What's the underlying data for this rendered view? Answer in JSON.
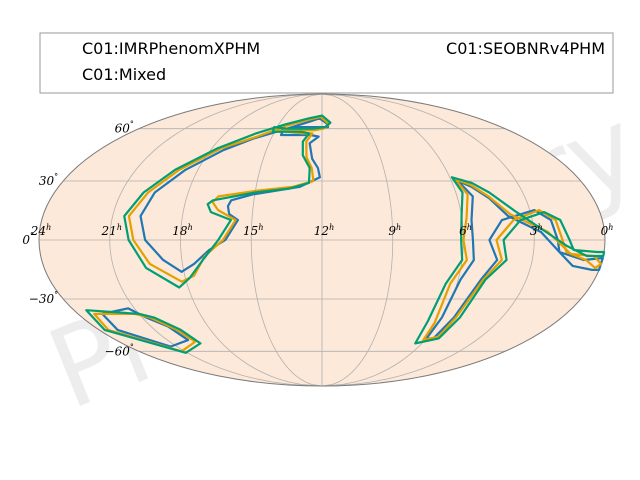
{
  "watermark": "Preliminary",
  "legend": {
    "entries": [
      {
        "label": "C01:IMRPhenomXPHM",
        "color": "#1f77b4"
      },
      {
        "label": "C01:SEOBNRv4PHM",
        "color": "#e69f00"
      },
      {
        "label": "C01:Mixed",
        "color": "#009e73"
      }
    ]
  },
  "chart_data": {
    "type": "skymap",
    "projection": "mollweide",
    "background_color": "#fde9d9",
    "grid": true,
    "ra_ticks": [
      {
        "hours": 24,
        "text": "24",
        "sup": "h"
      },
      {
        "hours": 21,
        "text": "21",
        "sup": "h"
      },
      {
        "hours": 18,
        "text": "18",
        "sup": "h"
      },
      {
        "hours": 15,
        "text": "15",
        "sup": "h"
      },
      {
        "hours": 12,
        "text": "12",
        "sup": "h"
      },
      {
        "hours": 9,
        "text": "9",
        "sup": "h"
      },
      {
        "hours": 6,
        "text": "6",
        "sup": "h"
      },
      {
        "hours": 3,
        "text": "3",
        "sup": "h"
      },
      {
        "hours": 0,
        "text": "0",
        "sup": "h"
      }
    ],
    "dec_ticks": [
      {
        "deg": 60,
        "text": "60",
        "sup": "°"
      },
      {
        "deg": 30,
        "text": "30",
        "sup": "°"
      },
      {
        "deg": 0,
        "text": "0",
        "sup": "°"
      },
      {
        "deg": -30,
        "text": "−30",
        "sup": "°"
      },
      {
        "deg": -60,
        "text": "−60",
        "sup": "°"
      }
    ],
    "series": [
      {
        "name": "C01:IMRPhenomXPHM",
        "color": "#1f77b4",
        "contours": [
          [
            [
              18.1,
              -16
            ],
            [
              18.8,
              -10
            ],
            [
              19.5,
              0
            ],
            [
              19.8,
              12
            ],
            [
              19.5,
              24
            ],
            [
              18.6,
              36
            ],
            [
              17.3,
              47
            ],
            [
              16.0,
              54
            ],
            [
              14.3,
              60
            ],
            [
              12.8,
              65
            ],
            [
              12.2,
              67
            ],
            [
              11.6,
              63
            ],
            [
              11.6,
              61
            ],
            [
              12.3,
              61
            ],
            [
              13.6,
              61
            ],
            [
              14.5,
              59
            ],
            [
              14.5,
              56
            ],
            [
              13.5,
              56
            ],
            [
              12.7,
              56
            ],
            [
              12.2,
              55
            ],
            [
              12.7,
              51
            ],
            [
              12.5,
              42
            ],
            [
              12.2,
              37
            ],
            [
              12.1,
              32
            ],
            [
              13.0,
              27
            ],
            [
              15.1,
              23
            ],
            [
              16.0,
              20
            ],
            [
              16.1,
              17
            ],
            [
              16.0,
              13
            ],
            [
              15.6,
              10
            ],
            [
              16.1,
              0
            ],
            [
              16.8,
              -5
            ],
            [
              17.5,
              -12
            ],
            [
              18.1,
              -16
            ]
          ],
          [
            [
              21.3,
              -35
            ],
            [
              22.8,
              -38
            ],
            [
              23.0,
              -47
            ],
            [
              21.4,
              -57
            ],
            [
              19.8,
              -53
            ],
            [
              20.1,
              -45
            ],
            [
              20.8,
              -40
            ],
            [
              21.3,
              -35
            ]
          ],
          [
            [
              5.7,
              30
            ],
            [
              5.3,
              22
            ],
            [
              5.6,
              10
            ],
            [
              5.6,
              0
            ],
            [
              5.5,
              -10
            ],
            [
              5.9,
              -20
            ],
            [
              6.0,
              -40
            ],
            [
              6.0,
              -52
            ],
            [
              5.6,
              -52
            ],
            [
              5.4,
              -40
            ],
            [
              5.0,
              -20
            ],
            [
              4.5,
              -10
            ],
            [
              4.9,
              0
            ],
            [
              4.3,
              10
            ],
            [
              2.8,
              15
            ],
            [
              2.2,
              10
            ],
            [
              2.0,
              0
            ],
            [
              1.9,
              -6
            ],
            [
              1.2,
              -13
            ],
            [
              0.3,
              -15
            ],
            [
              0,
              -15
            ],
            [
              0,
              -9
            ],
            [
              0.8,
              -10
            ],
            [
              1.9,
              -6
            ],
            [
              2.7,
              4
            ],
            [
              4.0,
              12
            ],
            [
              4.6,
              21
            ],
            [
              5.2,
              27
            ],
            [
              5.7,
              30
            ]
          ]
        ]
      },
      {
        "name": "C01:SEOBNRv4PHM",
        "color": "#e69f00",
        "contours": [
          [
            [
              18.2,
              -21
            ],
            [
              19.4,
              -12
            ],
            [
              20.0,
              0
            ],
            [
              20.3,
              12
            ],
            [
              19.8,
              24
            ],
            [
              18.9,
              36
            ],
            [
              17.5,
              48
            ],
            [
              15.9,
              55
            ],
            [
              14.4,
              62
            ],
            [
              13.0,
              66
            ],
            [
              12.1,
              68
            ],
            [
              11.5,
              63
            ],
            [
              11.9,
              60
            ],
            [
              12.5,
              59
            ],
            [
              14.1,
              59
            ],
            [
              14.9,
              61
            ],
            [
              14.9,
              59
            ],
            [
              14.1,
              58
            ],
            [
              13.2,
              57
            ],
            [
              12.6,
              57
            ],
            [
              12.9,
              52
            ],
            [
              12.8,
              43
            ],
            [
              12.5,
              37
            ],
            [
              12.4,
              30
            ],
            [
              13.3,
              27
            ],
            [
              14.9,
              25
            ],
            [
              16.6,
              22
            ],
            [
              16.8,
              19
            ],
            [
              16.5,
              15
            ],
            [
              15.7,
              10
            ],
            [
              16.2,
              0
            ],
            [
              17.0,
              -8
            ],
            [
              17.6,
              -18
            ],
            [
              18.2,
              -21
            ]
          ],
          [
            [
              21.2,
              -38
            ],
            [
              23.2,
              -38
            ],
            [
              23.5,
              -47
            ],
            [
              21.2,
              -60
            ],
            [
              19.5,
              -54
            ],
            [
              19.8,
              -47
            ],
            [
              20.6,
              -40
            ],
            [
              21.2,
              -38
            ]
          ],
          [
            [
              5.8,
              31
            ],
            [
              5.5,
              23
            ],
            [
              5.8,
              11
            ],
            [
              6.0,
              0
            ],
            [
              5.8,
              -10
            ],
            [
              6.3,
              -22
            ],
            [
              6.2,
              -43
            ],
            [
              6.1,
              -53
            ],
            [
              5.4,
              -51
            ],
            [
              5.3,
              -40
            ],
            [
              4.9,
              -20
            ],
            [
              4.3,
              -10
            ],
            [
              4.6,
              0
            ],
            [
              3.8,
              10
            ],
            [
              2.6,
              15
            ],
            [
              2.0,
              10
            ],
            [
              1.8,
              0
            ],
            [
              1.6,
              -6
            ],
            [
              0.7,
              -10
            ],
            [
              0.2,
              -14
            ],
            [
              0,
              -12
            ],
            [
              0.4,
              -8
            ],
            [
              1.4,
              -7
            ],
            [
              2.4,
              4
            ],
            [
              3.9,
              13
            ],
            [
              4.6,
              22
            ],
            [
              5.2,
              28
            ],
            [
              5.8,
              31
            ]
          ]
        ]
      },
      {
        "name": "C01:Mixed",
        "color": "#009e73",
        "contours": [
          [
            [
              18.4,
              -24
            ],
            [
              19.6,
              -14
            ],
            [
              20.2,
              0
            ],
            [
              20.5,
              12
            ],
            [
              20.0,
              24
            ],
            [
              19.1,
              36
            ],
            [
              17.7,
              48
            ],
            [
              16.1,
              57
            ],
            [
              14.5,
              63
            ],
            [
              13.0,
              67
            ],
            [
              12.0,
              69
            ],
            [
              11.4,
              64
            ],
            [
              11.8,
              61
            ],
            [
              12.6,
              60
            ],
            [
              14.3,
              60
            ],
            [
              15.2,
              61
            ],
            [
              15.1,
              58
            ],
            [
              14.3,
              58
            ],
            [
              13.3,
              58
            ],
            [
              12.8,
              57
            ],
            [
              13.1,
              52
            ],
            [
              13.0,
              44
            ],
            [
              12.6,
              37
            ],
            [
              12.6,
              29
            ],
            [
              13.5,
              26
            ],
            [
              15.0,
              24
            ],
            [
              16.8,
              20
            ],
            [
              17.0,
              18
            ],
            [
              16.8,
              14
            ],
            [
              15.9,
              10
            ],
            [
              16.4,
              0
            ],
            [
              17.1,
              -10
            ],
            [
              17.8,
              -19
            ],
            [
              18.4,
              -24
            ]
          ],
          [
            [
              21.0,
              -38
            ],
            [
              23.4,
              -36
            ],
            [
              23.7,
              -47
            ],
            [
              21.1,
              -61
            ],
            [
              19.3,
              -55
            ],
            [
              19.6,
              -47
            ],
            [
              20.4,
              -40
            ],
            [
              21.0,
              -38
            ]
          ],
          [
            [
              5.9,
              32
            ],
            [
              5.7,
              24
            ],
            [
              6.0,
              12
            ],
            [
              6.1,
              0
            ],
            [
              6.0,
              -10
            ],
            [
              6.5,
              -22
            ],
            [
              6.6,
              -42
            ],
            [
              6.4,
              -55
            ],
            [
              5.3,
              -52
            ],
            [
              5.1,
              -40
            ],
            [
              4.8,
              -20
            ],
            [
              4.1,
              -10
            ],
            [
              4.3,
              0
            ],
            [
              3.5,
              10
            ],
            [
              2.4,
              14
            ],
            [
              1.8,
              10
            ],
            [
              1.5,
              0
            ],
            [
              1.3,
              -5
            ],
            [
              0.3,
              -6
            ],
            [
              0,
              -6
            ],
            [
              0,
              -8
            ],
            [
              0.7,
              -8
            ],
            [
              1.6,
              -3
            ],
            [
              2.6,
              5
            ],
            [
              3.6,
              14
            ],
            [
              4.5,
              24
            ],
            [
              5.1,
              29
            ],
            [
              5.9,
              32
            ]
          ]
        ]
      }
    ]
  }
}
